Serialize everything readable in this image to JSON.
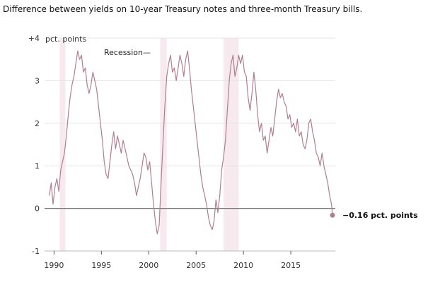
{
  "chart_data": {
    "type": "line",
    "title": "Difference between yields on 10-year Treasury notes and three-month Treasury bills.",
    "ylim": [
      -1,
      4
    ],
    "xlim": [
      1989,
      2019.7
    ],
    "y_ticks": [
      {
        "value": -1,
        "label": "-1"
      },
      {
        "value": 0,
        "label": "0"
      },
      {
        "value": 1,
        "label": "1"
      },
      {
        "value": 2,
        "label": "2"
      },
      {
        "value": 3,
        "label": "3"
      },
      {
        "value": 4,
        "label": "+4"
      }
    ],
    "y_unit_label": "pct. points",
    "x_ticks": [
      {
        "value": 1990,
        "label": "1990"
      },
      {
        "value": 1995,
        "label": "1995"
      },
      {
        "value": 2000,
        "label": "2000"
      },
      {
        "value": 2005,
        "label": "2005"
      },
      {
        "value": 2010,
        "label": "2010"
      },
      {
        "value": 2015,
        "label": "2015"
      }
    ],
    "recession_label": "Recession—",
    "recessions": [
      [
        1990.6,
        1991.2
      ],
      [
        2001.2,
        2001.9
      ],
      [
        2007.9,
        2009.5
      ]
    ],
    "last_value_label": "−0.16 pct. points",
    "grid": true,
    "colors": {
      "line": "#b07f8f",
      "recession": "#f7eaee",
      "zero": "#777777",
      "grid": "#e5e5e5"
    },
    "series": [
      {
        "x": [
          1989.5,
          1989.7,
          1989.9,
          1990.1,
          1990.3,
          1990.5,
          1990.7,
          1990.9,
          1991.1,
          1991.3,
          1991.5,
          1991.7,
          1991.9,
          1992.1,
          1992.3,
          1992.5,
          1992.7,
          1992.9,
          1993.1,
          1993.3,
          1993.5,
          1993.7,
          1993.9,
          1994.1,
          1994.3,
          1994.5,
          1994.7,
          1994.9,
          1995.1,
          1995.3,
          1995.5,
          1995.7,
          1995.9,
          1996.1,
          1996.3,
          1996.5,
          1996.7,
          1996.9,
          1997.1,
          1997.3,
          1997.5,
          1997.7,
          1997.9,
          1998.1,
          1998.3,
          1998.5,
          1998.7,
          1998.9,
          1999.1,
          1999.3,
          1999.5,
          1999.7,
          1999.9,
          2000.1,
          2000.3,
          2000.5,
          2000.7,
          2000.9,
          2001.1,
          2001.3,
          2001.5,
          2001.7,
          2001.9,
          2002.1,
          2002.3,
          2002.5,
          2002.7,
          2002.9,
          2003.1,
          2003.3,
          2003.5,
          2003.7,
          2003.9,
          2004.1,
          2004.3,
          2004.5,
          2004.7,
          2004.9,
          2005.1,
          2005.3,
          2005.5,
          2005.7,
          2005.9,
          2006.1,
          2006.3,
          2006.5,
          2006.7,
          2006.9,
          2007.1,
          2007.3,
          2007.5,
          2007.7,
          2007.9,
          2008.1,
          2008.3,
          2008.5,
          2008.7,
          2008.9,
          2009.1,
          2009.3,
          2009.5,
          2009.7,
          2009.9,
          2010.1,
          2010.3,
          2010.5,
          2010.7,
          2010.9,
          2011.1,
          2011.3,
          2011.5,
          2011.7,
          2011.9,
          2012.1,
          2012.3,
          2012.5,
          2012.7,
          2012.9,
          2013.1,
          2013.3,
          2013.5,
          2013.7,
          2013.9,
          2014.1,
          2014.3,
          2014.5,
          2014.7,
          2014.9,
          2015.1,
          2015.3,
          2015.5,
          2015.7,
          2015.9,
          2016.1,
          2016.3,
          2016.5,
          2016.7,
          2016.9,
          2017.1,
          2017.3,
          2017.5,
          2017.7,
          2017.9,
          2018.1,
          2018.3,
          2018.5,
          2018.7,
          2018.9,
          2019.1,
          2019.3,
          2019.4
        ],
        "y": [
          0.3,
          0.6,
          0.1,
          0.5,
          0.7,
          0.4,
          0.9,
          1.1,
          1.3,
          1.7,
          2.2,
          2.6,
          2.9,
          3.1,
          3.4,
          3.7,
          3.5,
          3.6,
          3.2,
          3.3,
          2.9,
          2.7,
          2.9,
          3.2,
          3.0,
          2.8,
          2.4,
          2.0,
          1.6,
          1.1,
          0.8,
          0.7,
          1.1,
          1.5,
          1.8,
          1.4,
          1.7,
          1.5,
          1.3,
          1.6,
          1.4,
          1.2,
          1.0,
          0.9,
          0.8,
          0.6,
          0.3,
          0.5,
          0.7,
          1.0,
          1.3,
          1.2,
          0.9,
          1.1,
          0.6,
          0.1,
          -0.3,
          -0.6,
          -0.4,
          0.6,
          1.5,
          2.4,
          3.1,
          3.4,
          3.6,
          3.2,
          3.3,
          3.0,
          3.3,
          3.6,
          3.4,
          3.1,
          3.5,
          3.7,
          3.3,
          2.8,
          2.4,
          2.0,
          1.6,
          1.2,
          0.8,
          0.5,
          0.3,
          0.1,
          -0.2,
          -0.4,
          -0.5,
          -0.3,
          0.2,
          -0.1,
          0.3,
          0.9,
          1.2,
          1.6,
          2.3,
          3.0,
          3.4,
          3.6,
          3.1,
          3.3,
          3.6,
          3.4,
          3.6,
          3.2,
          3.1,
          2.6,
          2.3,
          2.7,
          3.2,
          2.8,
          2.2,
          1.8,
          2.0,
          1.6,
          1.7,
          1.3,
          1.6,
          1.9,
          1.7,
          2.1,
          2.5,
          2.8,
          2.6,
          2.7,
          2.5,
          2.4,
          2.1,
          2.2,
          1.9,
          2.0,
          1.8,
          2.1,
          1.7,
          1.8,
          1.5,
          1.4,
          1.6,
          2.0,
          2.1,
          1.8,
          1.6,
          1.3,
          1.2,
          1.0,
          1.3,
          1.0,
          0.8,
          0.6,
          0.3,
          0.1,
          -0.16
        ]
      }
    ]
  }
}
